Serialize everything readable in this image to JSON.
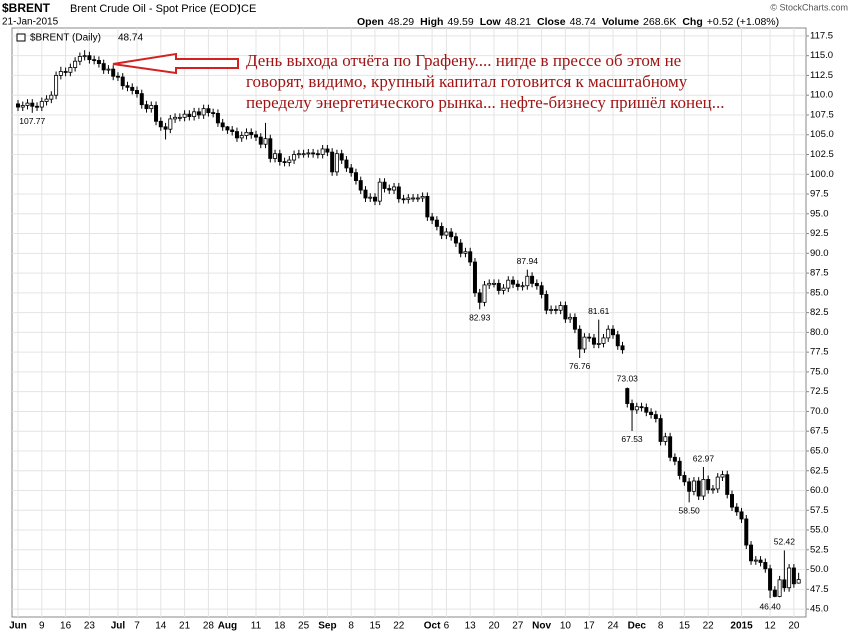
{
  "header": {
    "symbol": "$BRENT",
    "name": "Brent Crude Oil - Spot Price (EOD)",
    "exchange": "ICE",
    "date": "21-Jan-2015",
    "credit": "© StockCharts.com",
    "quote": [
      {
        "label": "Open",
        "value": "48.29"
      },
      {
        "label": "High",
        "value": "49.59"
      },
      {
        "label": "Low",
        "value": "48.21"
      },
      {
        "label": "Close",
        "value": "48.74"
      },
      {
        "label": "Volume",
        "value": "268.6K"
      },
      {
        "label": "Chg",
        "value": "+0.52 (+1.08%)"
      }
    ]
  },
  "chart_data": {
    "type": "candlestick",
    "legend": {
      "name": "$BRENT (Daily)",
      "value": "48.74"
    },
    "annotation": [
      "День выхода отчёта по Графену.... нигде в прессе об этом не",
      "говорят, видимо, крупный капитал готовится к масштабному",
      "переделу энергетического рынка... нефте-бизнесу пришёл конец..."
    ],
    "categories": [
      "Jun",
      null,
      null,
      null,
      null,
      "9",
      null,
      null,
      null,
      null,
      "16",
      null,
      null,
      null,
      null,
      "23",
      null,
      null,
      null,
      null,
      null,
      "Jul",
      null,
      null,
      null,
      "7",
      null,
      null,
      null,
      null,
      "14",
      null,
      null,
      null,
      null,
      "21",
      null,
      null,
      null,
      null,
      "28",
      null,
      null,
      null,
      "Aug",
      null,
      null,
      null,
      null,
      null,
      "11",
      null,
      null,
      null,
      null,
      "18",
      null,
      null,
      null,
      null,
      "25",
      null,
      null,
      null,
      null,
      "Sep",
      null,
      null,
      null,
      null,
      "8",
      null,
      null,
      null,
      null,
      "15",
      null,
      null,
      null,
      null,
      "22",
      null,
      null,
      null,
      null,
      null,
      null,
      "Oct",
      null,
      null,
      "6",
      null,
      null,
      null,
      null,
      "13",
      null,
      null,
      null,
      null,
      "20",
      null,
      null,
      null,
      null,
      "27",
      null,
      null,
      null,
      null,
      "Nov",
      null,
      null,
      null,
      null,
      "10",
      null,
      null,
      null,
      null,
      "17",
      null,
      null,
      null,
      null,
      "24",
      null,
      null,
      null,
      null,
      "Dec",
      null,
      null,
      null,
      null,
      "8",
      null,
      null,
      null,
      null,
      "15",
      null,
      null,
      null,
      null,
      "22",
      null,
      null,
      null,
      null,
      null,
      null,
      "2015",
      null,
      null,
      null,
      null,
      null,
      "12",
      null,
      null,
      null,
      null,
      "20",
      null
    ],
    "open": [
      108.9,
      108.5,
      108.7,
      109.0,
      108.6,
      108.5,
      109.2,
      109.5,
      110.0,
      112.5,
      113.0,
      112.9,
      113.5,
      114.3,
      114.9,
      115.0,
      114.5,
      114.4,
      114.0,
      113.2,
      113.3,
      112.4,
      112.3,
      111.2,
      111.0,
      110.6,
      110.2,
      108.8,
      108.3,
      108.7,
      106.7,
      106.0,
      105.7,
      107.0,
      107.2,
      107.2,
      107.6,
      107.3,
      107.9,
      107.5,
      108.3,
      107.8,
      107.7,
      106.5,
      106.0,
      105.6,
      105.4,
      104.6,
      104.9,
      105.3,
      105.0,
      104.7,
      103.8,
      104.5,
      102.0,
      102.6,
      101.6,
      101.5,
      101.8,
      102.5,
      102.6,
      102.6,
      102.7,
      102.6,
      102.5,
      103.2,
      102.8,
      100.3,
      102.6,
      101.8,
      100.8,
      100.2,
      99.2,
      98.0,
      97.0,
      97.1,
      96.6,
      99.0,
      98.2,
      98.0,
      98.4,
      96.9,
      96.8,
      97.0,
      97.0,
      97.0,
      97.2,
      94.6,
      94.2,
      93.4,
      92.3,
      92.7,
      92.1,
      91.3,
      90.0,
      90.2,
      88.9,
      85.0,
      83.8,
      86.0,
      86.2,
      86.2,
      85.3,
      85.6,
      86.6,
      86.1,
      85.8,
      85.9,
      87.1,
      86.2,
      85.9,
      84.8,
      82.8,
      82.9,
      82.8,
      83.4,
      81.7,
      81.9,
      80.4,
      77.9,
      79.4,
      79.3,
      78.5,
      78.6,
      79.3,
      80.4,
      79.7,
      78.3,
      72.9,
      71.0,
      70.2,
      70.6,
      70.5,
      69.9,
      69.6,
      69.1,
      66.2,
      66.8,
      64.2,
      63.7,
      61.9,
      61.1,
      59.9,
      61.2,
      59.3,
      61.4,
      60.1,
      60.2,
      61.7,
      62.0,
      59.5,
      57.9,
      57.3,
      56.4,
      53.1,
      51.1,
      51.2,
      50.9,
      50.1,
      47.4,
      46.6,
      48.7,
      47.7,
      50.2,
      48.29
    ],
    "high": [
      109.4,
      109.2,
      109.5,
      109.5,
      109.1,
      109.7,
      110.0,
      110.5,
      113.0,
      113.6,
      113.5,
      114.0,
      114.8,
      115.4,
      115.7,
      115.5,
      115.0,
      114.9,
      114.5,
      113.8,
      113.8,
      112.9,
      112.8,
      111.7,
      111.5,
      111.1,
      110.7,
      109.3,
      109.2,
      109.2,
      107.2,
      106.5,
      107.5,
      107.7,
      107.7,
      108.1,
      108.1,
      108.4,
      108.4,
      108.8,
      108.8,
      108.3,
      108.2,
      107.0,
      106.1,
      106.1,
      105.9,
      105.4,
      105.8,
      105.8,
      105.5,
      105.2,
      106.5,
      105.0,
      103.1,
      103.1,
      102.1,
      102.3,
      103.0,
      103.1,
      103.1,
      103.2,
      103.2,
      103.1,
      103.7,
      103.7,
      103.3,
      103.1,
      103.1,
      102.3,
      101.3,
      100.7,
      99.7,
      98.5,
      97.6,
      97.6,
      99.5,
      99.5,
      98.7,
      98.9,
      98.9,
      97.4,
      97.5,
      97.5,
      97.5,
      97.7,
      97.7,
      95.1,
      94.7,
      93.9,
      93.2,
      93.2,
      92.6,
      91.8,
      90.7,
      90.7,
      89.4,
      85.5,
      86.5,
      86.7,
      86.7,
      86.7,
      86.1,
      87.1,
      87.1,
      86.6,
      86.4,
      87.94,
      87.6,
      86.7,
      86.4,
      85.3,
      83.4,
      83.4,
      83.9,
      83.9,
      82.4,
      82.4,
      80.9,
      79.9,
      79.9,
      79.8,
      81.61,
      79.8,
      80.9,
      80.9,
      80.2,
      78.8,
      73.03,
      71.5,
      71.1,
      71.1,
      71.0,
      70.4,
      70.1,
      69.6,
      67.3,
      67.3,
      64.7,
      64.2,
      62.4,
      61.6,
      61.7,
      61.7,
      62.97,
      61.9,
      60.7,
      62.2,
      62.5,
      62.5,
      60.0,
      58.4,
      57.8,
      56.9,
      53.6,
      51.7,
      51.7,
      51.4,
      50.6,
      47.9,
      49.2,
      52.42,
      50.7,
      50.7,
      49.59
    ],
    "low": [
      108.0,
      108.0,
      108.2,
      107.77,
      108.0,
      108.0,
      108.7,
      109.0,
      109.5,
      112.0,
      112.4,
      112.4,
      113.0,
      113.8,
      114.4,
      114.0,
      113.9,
      113.5,
      112.7,
      112.7,
      111.9,
      111.8,
      110.7,
      110.5,
      110.1,
      109.7,
      108.3,
      107.8,
      107.8,
      106.2,
      105.5,
      104.4,
      105.2,
      106.5,
      106.7,
      106.7,
      106.8,
      106.8,
      107.0,
      107.0,
      107.3,
      107.2,
      106.0,
      105.5,
      105.1,
      104.9,
      104.1,
      104.1,
      104.4,
      104.5,
      104.2,
      103.3,
      103.3,
      101.5,
      101.5,
      101.1,
      101.0,
      101.0,
      101.3,
      102.0,
      102.1,
      102.1,
      102.1,
      102.0,
      102.0,
      102.3,
      99.8,
      99.8,
      101.3,
      100.3,
      99.7,
      98.7,
      97.5,
      96.5,
      96.5,
      96.1,
      96.1,
      97.7,
      97.5,
      97.5,
      96.4,
      96.3,
      96.3,
      96.5,
      96.5,
      96.5,
      94.1,
      93.7,
      92.9,
      91.8,
      91.8,
      91.6,
      90.8,
      89.5,
      89.5,
      88.4,
      84.5,
      82.93,
      83.3,
      85.5,
      85.7,
      84.8,
      84.8,
      85.1,
      85.6,
      85.3,
      85.3,
      85.4,
      85.7,
      85.4,
      84.3,
      82.3,
      82.3,
      82.3,
      82.3,
      81.2,
      81.2,
      79.9,
      76.76,
      77.4,
      78.8,
      78.0,
      78.0,
      78.1,
      78.8,
      79.2,
      77.8,
      77.3,
      70.5,
      67.53,
      69.7,
      70.0,
      69.4,
      69.1,
      68.6,
      65.7,
      65.7,
      63.7,
      63.2,
      61.4,
      60.6,
      58.5,
      59.4,
      58.8,
      58.8,
      59.6,
      59.6,
      59.7,
      61.2,
      59.0,
      57.4,
      56.8,
      55.9,
      52.6,
      50.6,
      50.6,
      50.4,
      49.6,
      46.4,
      46.5,
      46.5,
      47.2,
      47.2,
      47.7,
      48.21
    ],
    "close": [
      108.5,
      108.7,
      109.0,
      108.6,
      108.5,
      109.2,
      109.5,
      110.0,
      112.5,
      113.0,
      112.9,
      113.5,
      114.3,
      114.9,
      115.0,
      114.5,
      114.4,
      114.0,
      113.2,
      113.3,
      112.4,
      112.3,
      111.2,
      111.0,
      110.6,
      110.2,
      108.8,
      108.3,
      108.7,
      106.7,
      106.0,
      105.7,
      107.0,
      107.2,
      107.2,
      107.6,
      107.3,
      107.9,
      107.5,
      108.3,
      107.8,
      107.7,
      106.5,
      106.0,
      105.6,
      105.4,
      104.6,
      104.9,
      105.3,
      105.0,
      104.7,
      103.8,
      104.5,
      102.0,
      102.6,
      101.6,
      101.5,
      101.8,
      102.5,
      102.6,
      102.6,
      102.7,
      102.6,
      102.5,
      103.2,
      102.8,
      100.3,
      102.6,
      101.8,
      100.8,
      100.2,
      99.2,
      98.0,
      97.0,
      97.1,
      96.6,
      99.0,
      98.2,
      98.0,
      98.4,
      96.9,
      96.8,
      97.0,
      97.0,
      97.0,
      97.2,
      94.6,
      94.2,
      93.4,
      92.3,
      92.7,
      92.1,
      91.3,
      90.0,
      90.2,
      88.9,
      85.0,
      83.8,
      86.0,
      86.2,
      86.2,
      85.3,
      85.6,
      86.6,
      86.1,
      85.8,
      85.9,
      87.1,
      86.2,
      85.9,
      84.8,
      82.8,
      82.9,
      82.8,
      83.4,
      81.7,
      81.9,
      80.4,
      77.9,
      79.4,
      79.3,
      78.5,
      78.6,
      79.3,
      80.4,
      79.7,
      78.3,
      77.8,
      71.0,
      70.2,
      70.6,
      70.5,
      69.9,
      69.6,
      69.1,
      66.2,
      66.8,
      64.2,
      63.7,
      61.9,
      61.1,
      59.9,
      61.2,
      59.3,
      61.4,
      60.1,
      60.2,
      61.7,
      62.0,
      59.5,
      57.9,
      57.3,
      56.4,
      53.1,
      51.1,
      51.2,
      50.9,
      50.1,
      47.4,
      46.6,
      48.7,
      47.7,
      50.2,
      48.2,
      48.74
    ],
    "high_labels": {
      "107": "87.94",
      "122": "81.61",
      "128": "73.03",
      "144": "62.97",
      "161": "52.42"
    },
    "low_labels": {
      "3": "107.77",
      "97": "82.93",
      "118": "76.76",
      "129": "67.53",
      "141": "58.50",
      "158": "46.40"
    },
    "up_color": "#ffffff",
    "down_color": "#000000",
    "wick_color": "#000000",
    "ylim": [
      44.0,
      118.5
    ],
    "yticks": [
      {
        "value": 45,
        "label": "45.0"
      },
      {
        "value": 47.5,
        "label": "47.5"
      },
      {
        "value": 50,
        "label": "50.0"
      },
      {
        "value": 52.5,
        "label": "52.5"
      },
      {
        "value": 55,
        "label": "55.0"
      },
      {
        "value": 57.5,
        "label": "57.5"
      },
      {
        "value": 60,
        "label": "60.0"
      },
      {
        "value": 62.5,
        "label": "62.5"
      },
      {
        "value": 65,
        "label": "65.0"
      },
      {
        "value": 67.5,
        "label": "67.5"
      },
      {
        "value": 70,
        "label": "70.0"
      },
      {
        "value": 72.5,
        "label": "72.5"
      },
      {
        "value": 75,
        "label": "75.0"
      },
      {
        "value": 77.5,
        "label": "77.5"
      },
      {
        "value": 80,
        "label": "80.0"
      },
      {
        "value": 82.5,
        "label": "82.5"
      },
      {
        "value": 85,
        "label": "85.0"
      },
      {
        "value": 87.5,
        "label": "87.5"
      },
      {
        "value": 90,
        "label": "90.0"
      },
      {
        "value": 92.5,
        "label": "92.5"
      },
      {
        "value": 95,
        "label": "95.0"
      },
      {
        "value": 97.5,
        "label": "97.5"
      },
      {
        "value": 100,
        "label": "100.0"
      },
      {
        "value": 102.5,
        "label": "102.5"
      },
      {
        "value": 105,
        "label": "105.0"
      },
      {
        "value": 107.5,
        "label": "107.5"
      },
      {
        "value": 110,
        "label": "110.0"
      },
      {
        "value": 112.5,
        "label": "112.5"
      },
      {
        "value": 115,
        "label": "115.0"
      },
      {
        "value": 117.5,
        "label": "117.5"
      }
    ],
    "grid": true
  }
}
